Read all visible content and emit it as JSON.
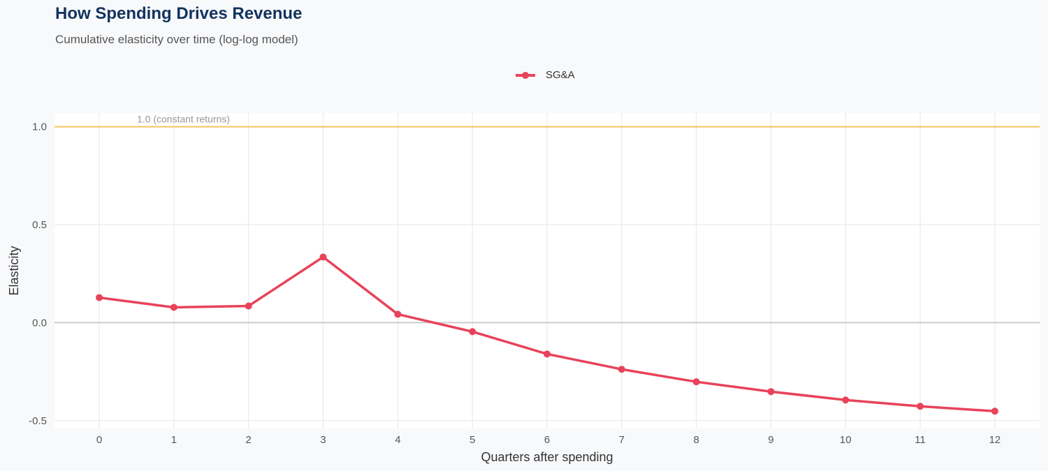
{
  "chart_data": {
    "type": "line",
    "title": "How Spending Drives Revenue",
    "subtitle": "Cumulative elasticity over time (log-log model)",
    "xlabel": "Quarters after spending",
    "ylabel": "Elasticity",
    "xlim": [
      -0.6,
      12.6
    ],
    "ylim": [
      -0.54,
      1.07
    ],
    "x_ticks": [
      0,
      1,
      2,
      3,
      4,
      5,
      6,
      7,
      8,
      9,
      10,
      11,
      12
    ],
    "y_ticks": [
      -0.5,
      0.0,
      0.5,
      1.0
    ],
    "y_tick_labels": [
      "-0.5",
      "0.0",
      "0.5",
      "1.0"
    ],
    "grid": true,
    "legend_position": "top",
    "reference_line": {
      "y": 1.0,
      "label": "1.0 (constant returns)",
      "color": "#f2c45a"
    },
    "zero_line_color": "#cccccc",
    "series": [
      {
        "name": "SG&A",
        "color": "#e8435a",
        "x": [
          0,
          1,
          2,
          3,
          4,
          5,
          6,
          7,
          8,
          9,
          10,
          11,
          12
        ],
        "values": [
          0.128,
          0.078,
          0.085,
          0.335,
          0.043,
          -0.046,
          -0.16,
          -0.238,
          -0.302,
          -0.352,
          -0.395,
          -0.427,
          -0.452
        ]
      }
    ]
  }
}
